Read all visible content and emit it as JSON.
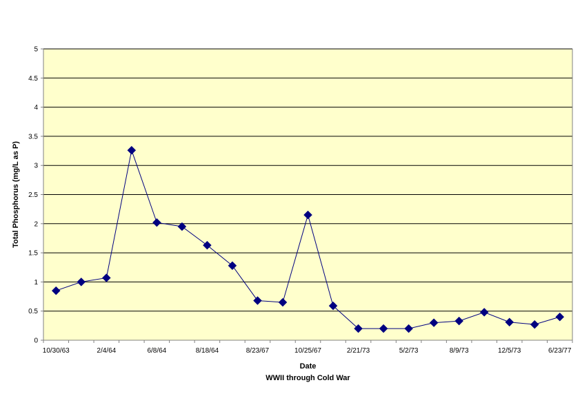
{
  "chart_data": {
    "type": "line",
    "title": "",
    "xlabel": "Date",
    "xlabel_sub": "WWII through Cold War",
    "ylabel": "Total Phosphorus (mg/L as P)",
    "ylim": [
      0,
      5
    ],
    "yticks": [
      "0",
      "0.5",
      "1",
      "1.5",
      "2",
      "2.5",
      "3",
      "3.5",
      "4",
      "4.5",
      "5"
    ],
    "x_tick_labels": [
      "10/30/63",
      "",
      "2/4/64",
      "",
      "6/8/64",
      "",
      "8/18/64",
      "",
      "8/23/67",
      "",
      "10/25/67",
      "",
      "2/21/73",
      "",
      "5/2/73",
      "",
      "8/9/73",
      "",
      "12/5/73",
      "",
      "6/23/77"
    ],
    "grid": true,
    "legend": "none",
    "series": [
      {
        "values": [
          0.85,
          1.0,
          1.07,
          3.26,
          2.02,
          1.95,
          1.63,
          1.28,
          0.68,
          0.65,
          2.15,
          0.59,
          0.2,
          0.2,
          0.2,
          0.3,
          0.33,
          0.48,
          0.31,
          0.27,
          0.4
        ],
        "color": "#000080"
      }
    ],
    "colors": {
      "plot_background": "#ffffcc",
      "gridline": "#000000",
      "line": "#000080",
      "marker": "#000080"
    }
  }
}
